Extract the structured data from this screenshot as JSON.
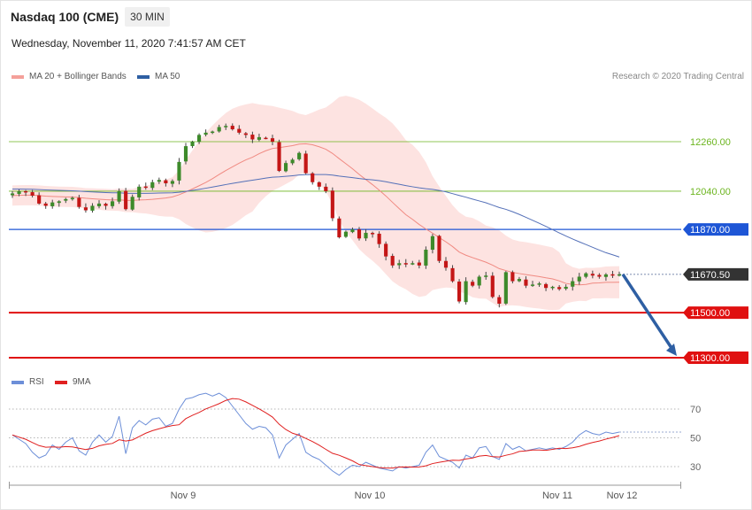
{
  "header": {
    "title": "Nasdaq 100 (CME)",
    "timeframe": "30 MIN",
    "datetime": "Wednesday, November 11, 2020 7:41:57 AM CET",
    "credit": "Research © 2020 Trading Central"
  },
  "legend_price": [
    {
      "label": "MA 20 + Bollinger Bands",
      "color": "#f4a09a"
    },
    {
      "label": "MA 50",
      "color": "#2e5fa3"
    }
  ],
  "legend_rsi": [
    {
      "label": "RSI",
      "color": "#6d8fd8"
    },
    {
      "label": "9MA",
      "color": "#e02020"
    }
  ],
  "chart_data": [
    {
      "type": "line",
      "panel": "price",
      "ylim": [
        11270,
        12450
      ],
      "x_ticks": [
        "Nov 9",
        "Nov 10",
        "Nov 11",
        "Nov 12"
      ],
      "levels": [
        {
          "value": 12260.0,
          "label": "12260.00",
          "kind": "resistance",
          "color": "#6cb51f"
        },
        {
          "value": 12040.0,
          "label": "12040.00",
          "kind": "resistance",
          "color": "#6cb51f"
        },
        {
          "value": 11870.0,
          "label": "11870.00",
          "kind": "pivot",
          "color": "#1e56d6"
        },
        {
          "value": 11670.5,
          "label": "11670.50",
          "kind": "last",
          "color": "#333333"
        },
        {
          "value": 11500.0,
          "label": "11500.00",
          "kind": "support",
          "color": "#e01010"
        },
        {
          "value": 11300.0,
          "label": "11300.00",
          "kind": "support",
          "color": "#e01010"
        }
      ],
      "series": [
        {
          "name": "MA 20",
          "color": "#f08a82"
        },
        {
          "name": "MA 50",
          "color": "#5470b8"
        }
      ],
      "close": [
        12030,
        12040,
        12035,
        12020,
        11985,
        11975,
        11990,
        11995,
        12005,
        12010,
        11970,
        11955,
        11975,
        11985,
        11975,
        11995,
        12040,
        11960,
        12015,
        12060,
        12055,
        12080,
        12090,
        12075,
        12085,
        12170,
        12240,
        12260,
        12290,
        12300,
        12305,
        12325,
        12330,
        12315,
        12300,
        12290,
        12270,
        12280,
        12275,
        12260,
        12130,
        12165,
        12180,
        12210,
        12120,
        12080,
        12060,
        12040,
        11920,
        11835,
        11860,
        11870,
        11830,
        11855,
        11850,
        11805,
        11750,
        11710,
        11720,
        11715,
        11720,
        11710,
        11780,
        11840,
        11730,
        11700,
        11640,
        11550,
        11640,
        11620,
        11660,
        11665,
        11570,
        11540,
        11680,
        11640,
        11650,
        11620,
        11625,
        11630,
        11610,
        11615,
        11605,
        11615,
        11640,
        11660,
        11675,
        11665,
        11660,
        11670,
        11668,
        11670.5
      ],
      "ma20_start": 12020,
      "ma50_start": 12050,
      "arrow": {
        "from": 11670.5,
        "to": 11300
      }
    },
    {
      "type": "line",
      "panel": "rsi",
      "ylim": [
        20,
        80
      ],
      "y_ticks": [
        70,
        50,
        30
      ],
      "series": [
        {
          "name": "RSI",
          "color": "#6d8fd8",
          "values": [
            52,
            49,
            46,
            40,
            36,
            38,
            45,
            42,
            47,
            50,
            41,
            38,
            47,
            52,
            47,
            51,
            65,
            39,
            57,
            62,
            59,
            63,
            64,
            58,
            60,
            70,
            77,
            78,
            80,
            81,
            79,
            81,
            78,
            72,
            66,
            60,
            56,
            58,
            57,
            52,
            36,
            45,
            49,
            53,
            40,
            37,
            35,
            31,
            27,
            24,
            28,
            31,
            30,
            33,
            31,
            29,
            28,
            27,
            30,
            29,
            30,
            31,
            40,
            45,
            37,
            35,
            33,
            29,
            38,
            36,
            43,
            44,
            37,
            35,
            46,
            42,
            44,
            41,
            42,
            43,
            42,
            43,
            42,
            44,
            47,
            52,
            55,
            53,
            52,
            54,
            53,
            54
          ]
        },
        {
          "name": "9MA",
          "color": "#e02020"
        }
      ]
    }
  ]
}
